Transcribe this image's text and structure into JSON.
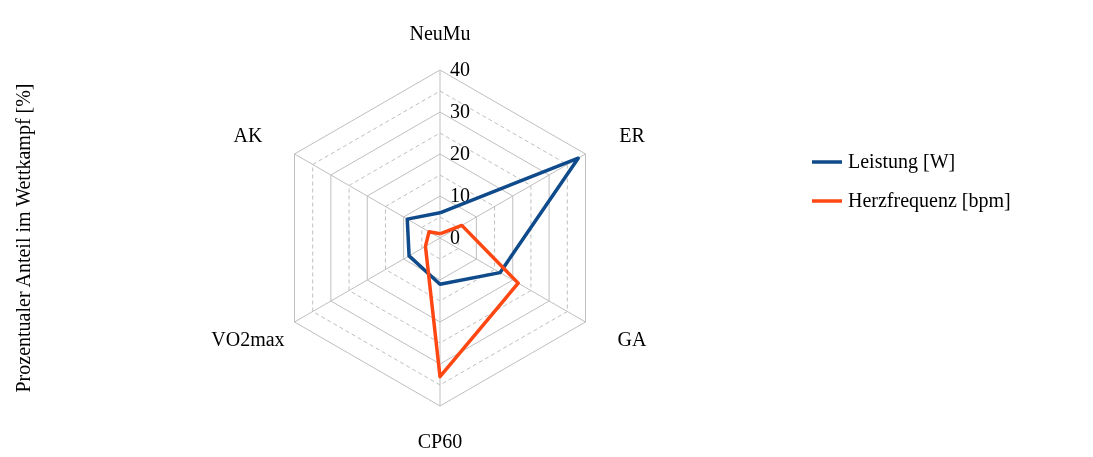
{
  "chart_data": {
    "type": "radar",
    "ylabel": "Prozentualer Anteil im Wettkampf [%]",
    "categories": [
      "NeuMu",
      "ER",
      "GA",
      "CP60",
      "VO2max",
      "AK"
    ],
    "ylim": [
      0,
      40
    ],
    "yticks": [
      0,
      10,
      20,
      30,
      40
    ],
    "grid": true,
    "legend": "right",
    "series": [
      {
        "name": "Leistung [W]",
        "color": "#0f4a8a",
        "values": [
          6,
          38,
          16.5,
          11,
          8.5,
          9
        ]
      },
      {
        "name": "Herzfrequenz [bpm]",
        "color": "#ff4713",
        "values": [
          1,
          6,
          21.5,
          33,
          4,
          3
        ]
      }
    ]
  }
}
